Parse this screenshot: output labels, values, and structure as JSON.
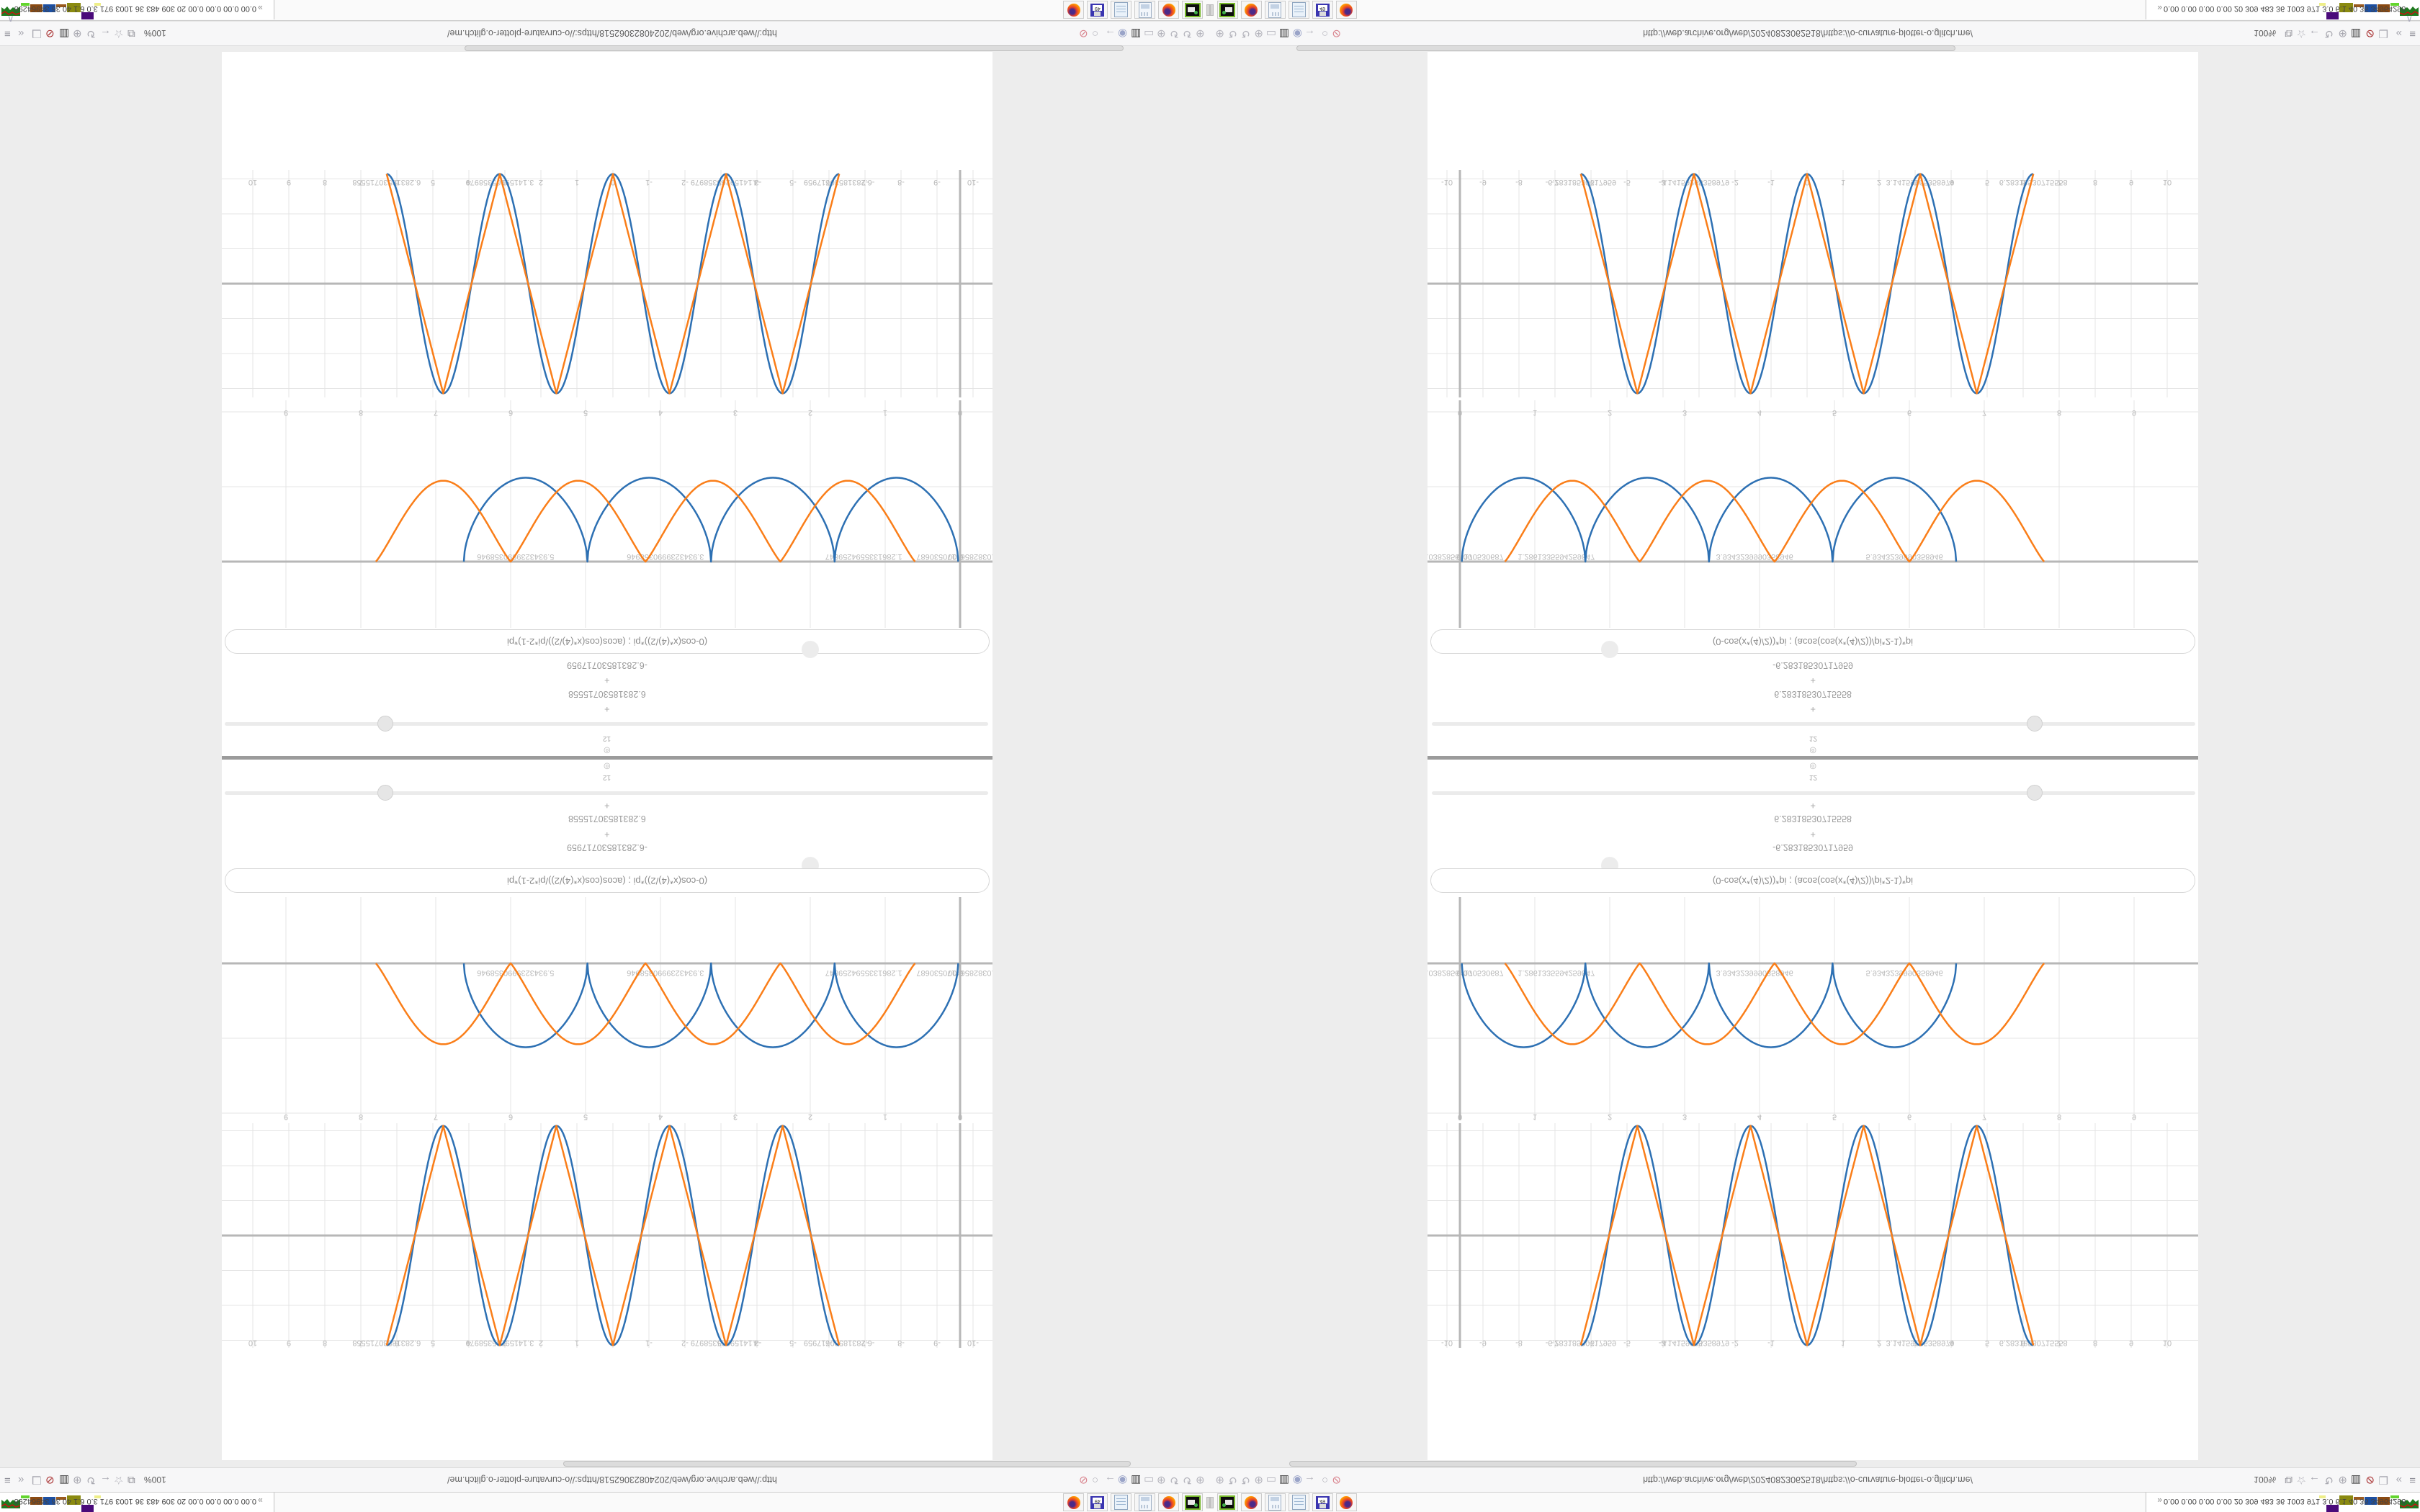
{
  "desktop": {
    "taskbar": {
      "stats_text": "0.00 0.00 0.00 0.00 20 309 483 36 1003 971 3.0 6.1 40 36 34964298",
      "overflow_glyph": "»",
      "pager_blocks": [
        {
          "color": "sparkline",
          "w": 26,
          "h": 18,
          "dy": 2
        },
        {
          "color": "#63d52e",
          "w": 12,
          "h": 4,
          "dy": 2
        },
        {
          "color": "#8a4a12",
          "w": 17,
          "h": 11,
          "dy": 4
        },
        {
          "color": "#1d4fa0",
          "w": 17,
          "h": 11,
          "dy": 4
        },
        {
          "color": "#9a5a1e",
          "w": 14,
          "h": 4,
          "dy": 4
        },
        {
          "color": "#8a8a10",
          "w": 19,
          "h": 13,
          "dy": 2
        },
        {
          "color": "#4a0a7a",
          "w": 17,
          "h": 10,
          "dy": 15
        },
        {
          "color": "#eeee88",
          "w": 9,
          "h": 4,
          "dy": 2
        }
      ],
      "dock_icons": [
        "firefox",
        "floppy-49",
        "notes",
        "app-window",
        "firefox",
        "terminal-green"
      ],
      "floppy_label": "49"
    },
    "navbar": {
      "zoom_label": "100%",
      "url": "http://web.archive.org/web/20240823062518/https://o-curvature-plotter-o.glitch.me/",
      "collapse_top": "∨",
      "collapse_bottom": "∧",
      "left_icons": [
        {
          "name": "menu-icon",
          "glyph": "≡",
          "color": "#8f8f98"
        },
        {
          "name": "chevrons-back-icon",
          "glyph": "«",
          "color": "#a8a8b0"
        },
        {
          "name": "thumbs-bubble-icon",
          "glyph": "❑",
          "color": "#a8a8b0"
        },
        {
          "name": "shield-badge-icon",
          "glyph": "⊘",
          "color": "#a82f2f"
        },
        {
          "name": "trash-icon",
          "glyph": "▥",
          "color": "#3c3c3c"
        },
        {
          "name": "globe-icon",
          "glyph": "⊕",
          "color": "#a8a8b0"
        },
        {
          "name": "reload-icon",
          "glyph": "↻",
          "color": "#a8a8b0"
        },
        {
          "name": "back-arrow-icon",
          "glyph": "←",
          "color": "#a8a8b0"
        },
        {
          "name": "star-icon",
          "glyph": "☆",
          "color": "#a8a8b0"
        },
        {
          "name": "page-flag-icon",
          "glyph": "⧉",
          "color": "#888890"
        }
      ],
      "right_icons": [
        {
          "name": "pencil-off-icon",
          "glyph": "⊘",
          "color": "#d9838d"
        },
        {
          "name": "egg-icon",
          "glyph": "○",
          "color": "#b4b4bc"
        },
        {
          "name": "forward-arrow-icon",
          "glyph": "→",
          "color": "#b4b4bc"
        },
        {
          "name": "badge-icon",
          "glyph": "◉",
          "color": "#9aa4c8"
        },
        {
          "name": "trash-icon",
          "glyph": "▥",
          "color": "#3c3c3c"
        },
        {
          "name": "chat-icon",
          "glyph": "▭",
          "color": "#b4b4bc"
        },
        {
          "name": "globe-icon",
          "glyph": "⊕",
          "color": "#b4b4bc"
        },
        {
          "name": "reload-icon",
          "glyph": "↻",
          "color": "#b4b4bc"
        },
        {
          "name": "reload2-icon",
          "glyph": "↻",
          "color": "#b4b4bc"
        },
        {
          "name": "globe2-icon",
          "glyph": "⊕",
          "color": "#b4b4bc"
        }
      ]
    }
  },
  "page": {
    "formula": "(0-cos(x*(4)/2))*pi ; (acos(cos(x*(4)/2))/pi*2-1)*pi",
    "value_neg": "-6.28318530717959",
    "value_pos": "6.28318530715558",
    "plus_glyph": "+",
    "gear_glyph": "◎",
    "small_value": "12"
  },
  "chart_data": [
    {
      "type": "line",
      "id": "outer-wave",
      "title": "",
      "xlabel": "",
      "ylabel": "",
      "xlim": [
        -10,
        10
      ],
      "ylim": [
        -3.3,
        3.3
      ],
      "grid": true,
      "x_tick_step": 1,
      "x_ticks": [
        "-10",
        "-9",
        "-8",
        "-7",
        "-6",
        "-5",
        "-4",
        "-3",
        "-2",
        "-1",
        "0",
        "1",
        "2",
        "3",
        "4",
        "5",
        "6",
        "7",
        "8",
        "9",
        "10"
      ],
      "special_x_ticks": [
        {
          "v": -6.2832,
          "label": "-6.28318530717959"
        },
        {
          "v": -3.1416,
          "label": "-3.14159265358979"
        },
        {
          "v": 3.1416,
          "label": "3.14159265358979"
        },
        {
          "v": 6.2832,
          "label": "6.28318530715558"
        }
      ],
      "series": [
        {
          "name": "(0-cos(x*(4)/2))*pi",
          "color": "#2d70b3",
          "shape": "cosine",
          "amplitude": 3.1416,
          "period": 3.1416,
          "domain": [
            -6.2832,
            6.2832
          ]
        },
        {
          "name": "(acos(cos(x*(4)/2))/pi*2-1)*pi",
          "color": "#fa7e19",
          "shape": "triangle",
          "amplitude": 3.1416,
          "period": 3.1416,
          "domain": [
            -6.2832,
            6.2832
          ]
        }
      ]
    },
    {
      "type": "line",
      "id": "inner-humps",
      "title": "",
      "xlabel": "",
      "ylabel": "",
      "xlim": [
        -0.43,
        9.86
      ],
      "ylim": [
        -2.15,
        0.95
      ],
      "grid": true,
      "x_tick_step": 1,
      "x_ticks": [
        "0",
        "1",
        "2",
        "3",
        "4",
        "5",
        "6",
        "7",
        "8",
        "9"
      ],
      "special_x_ticks": [
        {
          "v": 0.06,
          "label": "0.00"
        },
        {
          "v": 0.0382856,
          "label": "0.03828564170530687"
        },
        {
          "v": 1.2861335,
          "label": "1.2861335594259847"
        },
        {
          "v": 3.9343239,
          "label": "3.9343239990358946"
        },
        {
          "v": 5.9343239,
          "label": "5.9343239990358946"
        }
      ],
      "series": [
        {
          "name": "blue-square-humps",
          "color": "#2d70b3",
          "shape": "humps",
          "amplitude": 1.12,
          "period": 1.65,
          "exponent": 0.55,
          "phase": 0.025,
          "domain": [
            0.025,
            6.625
          ]
        },
        {
          "name": "orange-sine-humps",
          "color": "#fa7e19",
          "shape": "humps",
          "amplitude": 1.08,
          "period": 1.8,
          "exponent": 1.15,
          "phase": 0.6,
          "domain": [
            0.6,
            7.8
          ]
        }
      ]
    }
  ],
  "colors": {
    "curve_blue": "#2d70b3",
    "curve_orange": "#fa7e19",
    "grid": "#e4e4e4",
    "axis": "#b7b7b7",
    "tick_label": "#b9b9b9",
    "divider": "#9b9b9b",
    "page_bg": "#ededed"
  }
}
